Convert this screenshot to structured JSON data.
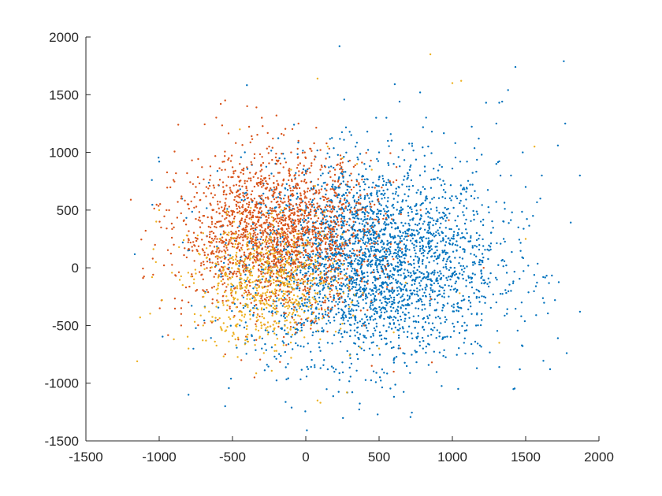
{
  "chart_data": {
    "type": "scatter",
    "title": "",
    "xlabel": "",
    "ylabel": "",
    "xlim": [
      -1500,
      2000
    ],
    "ylim": [
      -1500,
      2000
    ],
    "xticks": [
      -1500,
      -1000,
      -500,
      0,
      500,
      1000,
      1500,
      2000
    ],
    "yticks": [
      -1500,
      -1000,
      -500,
      0,
      500,
      1000,
      1500,
      2000
    ],
    "grid": false,
    "legend": "none",
    "box": "left-bottom axes only",
    "marker": "filled dot",
    "series": [
      {
        "color": "#0072BD",
        "approx_count": 3000,
        "center": [
          450,
          50
        ],
        "spread": [
          430,
          430
        ],
        "points": [
          [
            230,
            1920
          ],
          [
            1760,
            1790
          ],
          [
            1430,
            1740
          ],
          [
            1380,
            1540
          ],
          [
            780,
            1520
          ],
          [
            1230,
            1430
          ],
          [
            1340,
            1440
          ],
          [
            1320,
            1430
          ],
          [
            640,
            1440
          ],
          [
            1770,
            1250
          ],
          [
            550,
            1300
          ],
          [
            310,
            1150
          ],
          [
            -80,
            1240
          ],
          [
            1480,
            1000
          ],
          [
            1300,
            1250
          ],
          [
            1720,
            1060
          ],
          [
            1870,
            800
          ],
          [
            1610,
            800
          ],
          [
            -1000,
            920
          ],
          [
            -1050,
            760
          ],
          [
            -800,
            -1100
          ],
          [
            -550,
            -1200
          ],
          [
            -510,
            -960
          ],
          [
            1040,
            -1050
          ],
          [
            1460,
            -880
          ],
          [
            1320,
            -860
          ],
          [
            1470,
            -420
          ],
          [
            1720,
            -610
          ],
          [
            1780,
            -740
          ],
          [
            1700,
            -280
          ],
          [
            1570,
            -160
          ],
          [
            1620,
            -80
          ],
          [
            300,
            -190
          ],
          [
            350,
            -220
          ],
          [
            400,
            -120
          ],
          [
            320,
            -320
          ],
          [
            230,
            -260
          ],
          [
            120,
            -180
          ],
          [
            60,
            -250
          ],
          [
            180,
            -80
          ],
          [
            420,
            -40
          ],
          [
            480,
            60
          ],
          [
            380,
            50
          ],
          [
            250,
            30
          ],
          [
            520,
            180
          ],
          [
            600,
            260
          ],
          [
            700,
            320
          ],
          [
            800,
            380
          ],
          [
            900,
            420
          ],
          [
            950,
            520
          ],
          [
            1050,
            560
          ],
          [
            1150,
            600
          ],
          [
            1250,
            480
          ],
          [
            1350,
            400
          ],
          [
            1100,
            300
          ],
          [
            1000,
            200
          ],
          [
            900,
            100
          ],
          [
            820,
            0
          ],
          [
            750,
            -100
          ],
          [
            650,
            -200
          ],
          [
            550,
            -300
          ],
          [
            450,
            -420
          ],
          [
            350,
            -520
          ],
          [
            250,
            -600
          ],
          [
            150,
            -650
          ],
          [
            50,
            -560
          ],
          [
            -50,
            -480
          ],
          [
            -150,
            -420
          ],
          [
            -250,
            -380
          ],
          [
            -350,
            -330
          ],
          [
            -80,
            -120
          ],
          [
            -20,
            -60
          ],
          [
            100,
            20
          ],
          [
            200,
            120
          ],
          [
            300,
            220
          ],
          [
            400,
            330
          ],
          [
            500,
            420
          ],
          [
            600,
            520
          ],
          [
            700,
            620
          ],
          [
            800,
            700
          ],
          [
            900,
            780
          ],
          [
            1000,
            860
          ],
          [
            1100,
            920
          ],
          [
            1200,
            980
          ],
          [
            1300,
            900
          ],
          [
            1400,
            800
          ],
          [
            1500,
            700
          ],
          [
            1600,
            600
          ],
          [
            1550,
            450
          ],
          [
            1450,
            350
          ],
          [
            1350,
            250
          ],
          [
            1250,
            150
          ],
          [
            1150,
            50
          ],
          [
            1050,
            -50
          ],
          [
            950,
            -150
          ],
          [
            850,
            -250
          ],
          [
            750,
            -350
          ],
          [
            650,
            -450
          ],
          [
            550,
            -550
          ],
          [
            450,
            -650
          ],
          [
            350,
            -750
          ],
          [
            250,
            -820
          ],
          [
            150,
            -880
          ],
          [
            -300,
            -700
          ],
          [
            -400,
            -620
          ],
          [
            -450,
            -500
          ],
          [
            -200,
            -580
          ],
          [
            100,
            -720
          ],
          [
            600,
            -800
          ],
          [
            800,
            -700
          ],
          [
            950,
            -600
          ],
          [
            1100,
            -500
          ],
          [
            1200,
            -400
          ],
          [
            1300,
            -300
          ],
          [
            1400,
            -200
          ],
          [
            700,
            800
          ],
          [
            600,
            900
          ],
          [
            500,
            1000
          ],
          [
            400,
            900
          ],
          [
            300,
            800
          ],
          [
            200,
            700
          ],
          [
            100,
            600
          ],
          [
            0,
            500
          ],
          [
            -100,
            400
          ],
          [
            -200,
            300
          ],
          [
            -150,
            150
          ],
          [
            -50,
            50
          ],
          [
            50,
            -30
          ],
          [
            480,
            1300
          ],
          [
            860,
            1180
          ],
          [
            1020,
            1080
          ],
          [
            1180,
            1120
          ],
          [
            660,
            1020
          ],
          [
            560,
            1100
          ],
          [
            420,
            1180
          ],
          [
            340,
            1050
          ]
        ]
      },
      {
        "color": "#D95319",
        "approx_count": 2000,
        "center": [
          -200,
          300
        ],
        "spread": [
          330,
          330
        ],
        "points": [
          [
            -550,
            1450
          ],
          [
            -580,
            1420
          ],
          [
            -400,
            1400
          ],
          [
            -300,
            1300
          ],
          [
            -200,
            1320
          ],
          [
            -50,
            1250
          ],
          [
            -870,
            1240
          ],
          [
            -150,
            1150
          ],
          [
            -250,
            1050
          ],
          [
            -350,
            950
          ],
          [
            -450,
            900
          ],
          [
            -550,
            850
          ],
          [
            -650,
            800
          ],
          [
            -750,
            700
          ],
          [
            -850,
            600
          ],
          [
            -950,
            500
          ],
          [
            -900,
            350
          ],
          [
            -800,
            250
          ],
          [
            -700,
            150
          ],
          [
            -600,
            50
          ],
          [
            -500,
            -50
          ],
          [
            -400,
            -150
          ],
          [
            -300,
            -250
          ],
          [
            -200,
            -350
          ],
          [
            -100,
            -300
          ],
          [
            0,
            -200
          ],
          [
            100,
            -100
          ],
          [
            150,
            0
          ],
          [
            100,
            100
          ],
          [
            50,
            200
          ],
          [
            0,
            300
          ],
          [
            -50,
            400
          ],
          [
            -100,
            500
          ],
          [
            -150,
            600
          ],
          [
            -200,
            700
          ],
          [
            -250,
            800
          ],
          [
            -300,
            700
          ],
          [
            -350,
            600
          ],
          [
            -400,
            500
          ],
          [
            -450,
            400
          ],
          [
            -500,
            300
          ],
          [
            -550,
            200
          ],
          [
            -600,
            100
          ],
          [
            -650,
            0
          ],
          [
            -700,
            -100
          ],
          [
            -750,
            -200
          ],
          [
            -800,
            -300
          ],
          [
            -850,
            -400
          ],
          [
            -300,
            300
          ],
          [
            -250,
            250
          ],
          [
            -200,
            200
          ],
          [
            -150,
            250
          ],
          [
            -100,
            300
          ],
          [
            -50,
            250
          ],
          [
            0,
            200
          ],
          [
            50,
            150
          ],
          [
            100,
            250
          ],
          [
            150,
            350
          ],
          [
            200,
            450
          ],
          [
            250,
            550
          ],
          [
            300,
            650
          ],
          [
            200,
            750
          ],
          [
            100,
            850
          ],
          [
            0,
            950
          ],
          [
            -100,
            1000
          ],
          [
            -200,
            900
          ],
          [
            -300,
            850
          ],
          [
            -400,
            750
          ],
          [
            -500,
            650
          ],
          [
            -600,
            550
          ],
          [
            -700,
            450
          ],
          [
            -650,
            350
          ],
          [
            -350,
            150
          ],
          [
            -250,
            50
          ],
          [
            -150,
            -50
          ],
          [
            -50,
            -100
          ],
          [
            50,
            -50
          ],
          [
            -400,
            250
          ],
          [
            -300,
            100
          ],
          [
            -200,
            400
          ],
          [
            -600,
            -450
          ],
          [
            -550,
            -750
          ],
          [
            -150,
            -600
          ],
          [
            150,
            -350
          ],
          [
            450,
            -850
          ],
          [
            600,
            -900
          ],
          [
            860,
            -820
          ],
          [
            -850,
            -350
          ],
          [
            -350,
            -950
          ],
          [
            -440,
            -800
          ],
          [
            -900,
            200
          ],
          [
            -850,
            -500
          ],
          [
            -50,
            1100
          ],
          [
            100,
            1020
          ],
          [
            250,
            850
          ],
          [
            350,
            750
          ]
        ]
      },
      {
        "color": "#EDB120",
        "approx_count": 700,
        "center": [
          -250,
          -150
        ],
        "spread": [
          260,
          260
        ],
        "points": [
          [
            850,
            1850
          ],
          [
            80,
            1640
          ],
          [
            1000,
            1600
          ],
          [
            1060,
            1620
          ],
          [
            -450,
            1200
          ],
          [
            -1000,
            500
          ],
          [
            -1020,
            400
          ],
          [
            -1150,
            -810
          ],
          [
            -1130,
            -430
          ],
          [
            -800,
            -700
          ],
          [
            -700,
            -500
          ],
          [
            -600,
            -300
          ],
          [
            -500,
            -200
          ],
          [
            -400,
            -100
          ],
          [
            -300,
            0
          ],
          [
            -200,
            -50
          ],
          [
            -150,
            -150
          ],
          [
            -250,
            -250
          ],
          [
            -350,
            -350
          ],
          [
            -450,
            -450
          ],
          [
            -550,
            -550
          ],
          [
            -400,
            -600
          ],
          [
            -300,
            -500
          ],
          [
            -200,
            -400
          ],
          [
            -100,
            -300
          ],
          [
            0,
            -250
          ],
          [
            -50,
            -150
          ],
          [
            -150,
            -50
          ],
          [
            -250,
            50
          ],
          [
            -350,
            150
          ],
          [
            -450,
            50
          ],
          [
            -550,
            -50
          ],
          [
            -500,
            -150
          ],
          [
            -420,
            -220
          ],
          [
            -340,
            -280
          ],
          [
            -260,
            -120
          ],
          [
            -180,
            -200
          ],
          [
            -320,
            -170
          ],
          [
            -380,
            -60
          ],
          [
            -280,
            -320
          ],
          [
            -200,
            -480
          ],
          [
            -120,
            -560
          ],
          [
            -40,
            -420
          ],
          [
            40,
            -340
          ],
          [
            100,
            -1170
          ],
          [
            80,
            -1150
          ],
          [
            280,
            -1080
          ],
          [
            -440,
            -380
          ],
          [
            -600,
            -180
          ],
          [
            -560,
            -480
          ],
          [
            -480,
            -620
          ],
          [
            -660,
            -380
          ],
          [
            300,
            -760
          ],
          [
            500,
            -700
          ],
          [
            600,
            -560
          ],
          [
            1050,
            -220
          ],
          [
            1320,
            -650
          ],
          [
            1500,
            250
          ],
          [
            1560,
            1050
          ],
          [
            350,
            900
          ],
          [
            150,
            1050
          ],
          [
            250,
            950
          ],
          [
            450,
            850
          ],
          [
            -100,
            850
          ],
          [
            -700,
            300
          ],
          [
            -750,
            -50
          ],
          [
            -900,
            -620
          ],
          [
            -980,
            -280
          ],
          [
            -840,
            -150
          ],
          [
            -620,
            -640
          ],
          [
            -200,
            -720
          ],
          [
            -100,
            -780
          ]
        ]
      }
    ]
  }
}
